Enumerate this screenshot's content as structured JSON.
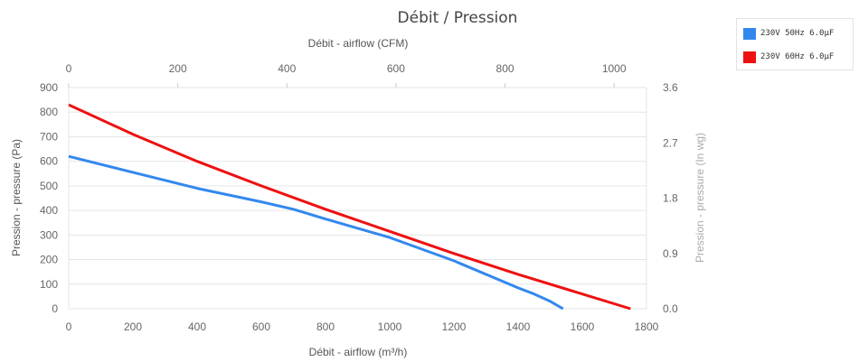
{
  "chart_data": {
    "type": "line",
    "title": "Débit / Pression",
    "xlabel": "Débit - airflow (m³/h)",
    "x2label": "Débit - airflow (CFM)",
    "ylabel": "Pression - pressure (Pa)",
    "y2label": "Pression - pressure (In wg)",
    "xlim": [
      0,
      1800
    ],
    "ylim": [
      0,
      900
    ],
    "x2lim": [
      0,
      1059.4
    ],
    "y2lim": [
      0,
      3.6
    ],
    "x_ticks": [
      "0",
      "200",
      "400",
      "600",
      "800",
      "1000",
      "1200",
      "1400",
      "1600",
      "1800"
    ],
    "x_tick_values": [
      0,
      200,
      400,
      600,
      800,
      1000,
      1200,
      1400,
      1600,
      1800
    ],
    "x2_ticks": [
      "0",
      "200",
      "400",
      "600",
      "800",
      "1000"
    ],
    "x2_tick_values": [
      0,
      200,
      400,
      600,
      800,
      1000
    ],
    "y_ticks": [
      "0",
      "100",
      "200",
      "300",
      "400",
      "500",
      "600",
      "700",
      "800",
      "900"
    ],
    "y_tick_values": [
      0,
      100,
      200,
      300,
      400,
      500,
      600,
      700,
      800,
      900
    ],
    "y2_ticks": [
      "0.0",
      "0.9",
      "1.8",
      "2.7",
      "3.6"
    ],
    "y2_tick_values": [
      0,
      0.9,
      1.8,
      2.7,
      3.6
    ],
    "grid": true,
    "legend_position": "top-right",
    "series": [
      {
        "name": "230V 50Hz 6.0µF",
        "color": "#3388ee",
        "x": [
          0,
          200,
          400,
          600,
          700,
          800,
          1000,
          1200,
          1400,
          1450,
          1500,
          1540
        ],
        "y": [
          620,
          555,
          490,
          435,
          405,
          365,
          290,
          195,
          85,
          60,
          30,
          0
        ]
      },
      {
        "name": "230V 60Hz 6.0µF",
        "color": "#ee1111",
        "x": [
          0,
          200,
          400,
          600,
          800,
          1000,
          1200,
          1400,
          1600,
          1750
        ],
        "y": [
          830,
          710,
          600,
          500,
          405,
          315,
          225,
          140,
          60,
          0
        ]
      }
    ]
  }
}
